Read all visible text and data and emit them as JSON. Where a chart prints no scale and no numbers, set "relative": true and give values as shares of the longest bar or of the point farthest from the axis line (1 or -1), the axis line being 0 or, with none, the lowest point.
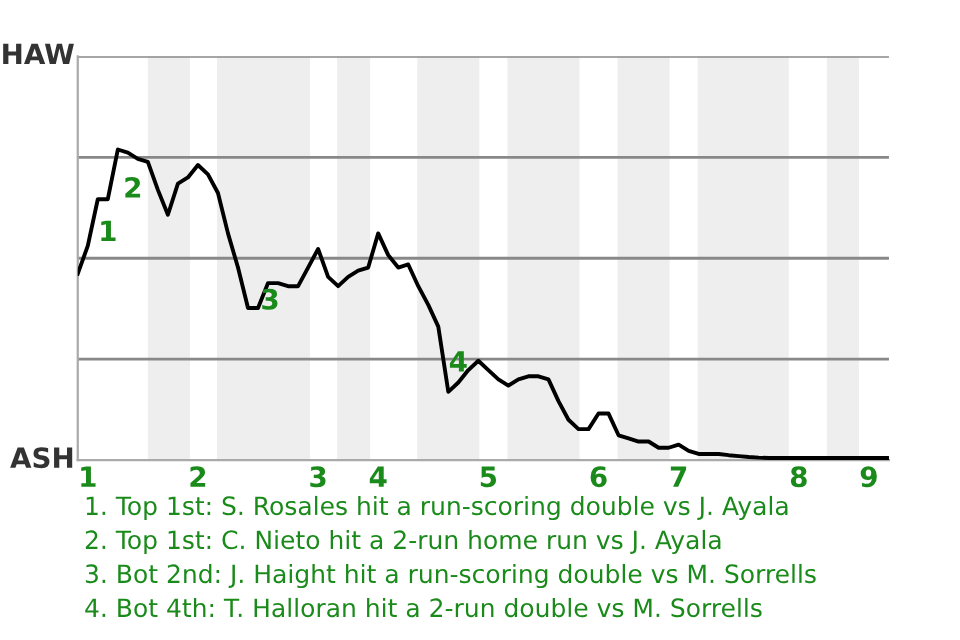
{
  "chart_data": {
    "type": "line",
    "relative": true,
    "categories": [
      null,
      "1",
      null,
      null,
      null,
      null,
      null,
      null,
      null,
      null,
      null,
      null,
      "2",
      null,
      null,
      null,
      null,
      null,
      null,
      null,
      null,
      null,
      null,
      null,
      "3",
      null,
      null,
      null,
      null,
      null,
      "4",
      null,
      null,
      null,
      null,
      null,
      null,
      null,
      null,
      null,
      null,
      "5",
      null,
      null,
      null,
      null,
      null,
      null,
      null,
      null,
      null,
      null,
      "6",
      null,
      null,
      null,
      null,
      null,
      null,
      null,
      "7",
      null,
      null,
      null,
      null,
      null,
      null,
      null,
      null,
      null,
      null,
      null,
      "8",
      null,
      null,
      null,
      null,
      null,
      null,
      "9",
      null,
      null
    ],
    "series": [
      {
        "color": "#000000",
        "values": [
          0.6,
          0.69,
          0.84,
          0.84,
          1,
          0.99,
          0.97,
          0.96,
          0.87,
          0.79,
          0.89,
          0.91,
          0.95,
          0.92,
          0.86,
          0.73,
          0.62,
          0.49,
          0.49,
          0.57,
          0.57,
          0.56,
          0.56,
          0.62,
          0.68,
          0.59,
          0.56,
          0.59,
          0.61,
          0.62,
          0.73,
          0.66,
          0.62,
          0.63,
          0.56,
          0.5,
          0.43,
          0.22,
          0.25,
          0.29,
          0.32,
          0.29,
          0.26,
          0.24,
          0.26,
          0.27,
          0.27,
          0.26,
          0.19,
          0.13,
          0.1,
          0.1,
          0.15,
          0.15,
          0.08,
          0.07,
          0.06,
          0.06,
          0.04,
          0.04,
          0.05,
          0.03,
          0.02,
          0.02,
          0.02,
          0.016,
          0.013,
          0.01,
          0.008,
          0.007,
          0.007,
          0.007,
          0.007,
          0.007,
          0.007,
          0.007,
          0.007,
          0.007,
          0.007,
          0.007,
          0.007,
          0.007
        ]
      }
    ],
    "grid": "y",
    "legend": false,
    "marker": "none",
    "line_style": "solid",
    "annotations": [
      "HAW",
      "ASH",
      "1",
      "2",
      "3",
      "4",
      "1. Top 1st: S. Rosales hit a run-scoring double vs J. Ayala",
      "2. Top 1st: C. Nieto hit a 2-run home run vs J. Ayala",
      "3. Bot 2nd: J. Haight hit a run-scoring double vs M. Sorrells",
      "4. Bot 4th: T. Halloran hit a 2-run double vs M. Sorrells"
    ]
  }
}
